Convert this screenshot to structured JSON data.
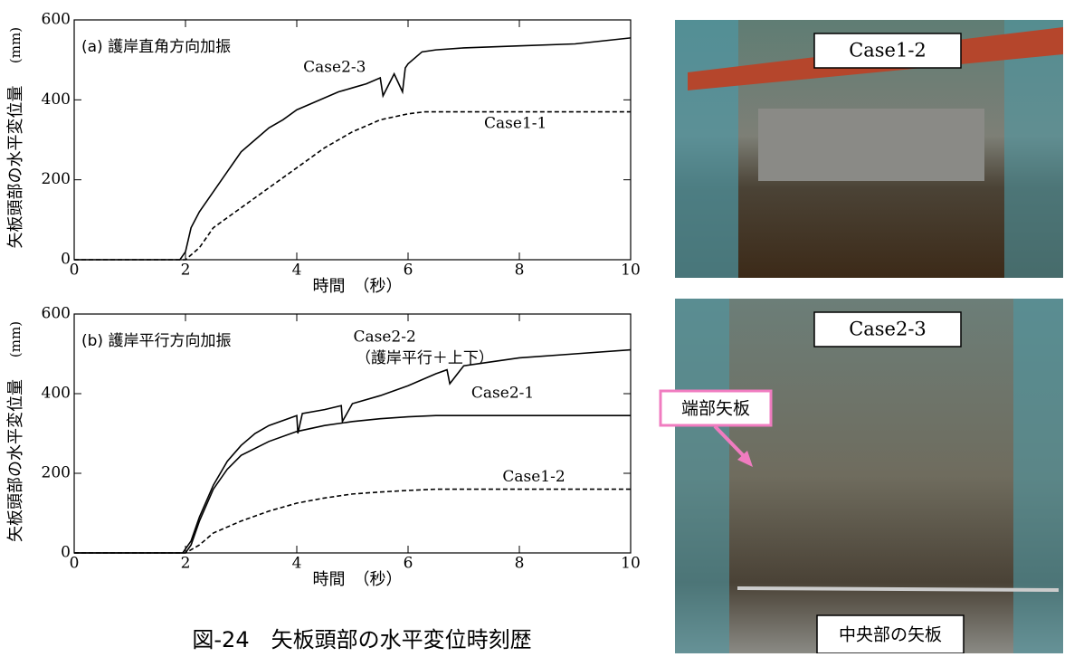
{
  "chart_data": [
    {
      "type": "line",
      "subtitle": "(a) 護岸直角方向加振",
      "xlabel": "時間　（秒）",
      "ylabel": "矢板頭部の水平変位量",
      "yunit": "(mm)",
      "xlim": [
        0,
        10
      ],
      "ylim": [
        0,
        600
      ],
      "xticks": [
        0,
        2,
        4,
        6,
        8,
        10
      ],
      "yticks": [
        0,
        200,
        400,
        600
      ],
      "series": [
        {
          "name": "Case2-3",
          "color": "#000000",
          "dash": false,
          "x": [
            0,
            1.9,
            2.0,
            2.1,
            2.25,
            2.5,
            2.75,
            3.0,
            3.25,
            3.5,
            3.75,
            4.0,
            4.25,
            4.5,
            4.75,
            5.0,
            5.25,
            5.5,
            5.55,
            5.75,
            5.9,
            5.95,
            6.0,
            6.25,
            6.5,
            7.0,
            8.0,
            9.0,
            10.0
          ],
          "values": [
            0,
            0,
            20,
            80,
            120,
            170,
            220,
            270,
            300,
            330,
            350,
            375,
            390,
            405,
            420,
            430,
            440,
            455,
            410,
            465,
            420,
            480,
            490,
            520,
            525,
            530,
            535,
            540,
            555
          ]
        },
        {
          "name": "Case1-1",
          "color": "#000000",
          "dash": true,
          "x": [
            0,
            2.0,
            2.25,
            2.5,
            3.0,
            3.5,
            4.0,
            4.5,
            5.0,
            5.5,
            6.0,
            6.3,
            10.0
          ],
          "values": [
            0,
            0,
            30,
            80,
            130,
            180,
            230,
            280,
            320,
            350,
            365,
            370,
            370
          ]
        }
      ]
    },
    {
      "type": "line",
      "subtitle": "(b) 護岸平行方向加振",
      "xlabel": "時間　（秒）",
      "ylabel": "矢板頭部の水平変位量",
      "yunit": "(mm)",
      "annotation": "（護岸平行＋上下）",
      "xlim": [
        0,
        10
      ],
      "ylim": [
        0,
        600
      ],
      "xticks": [
        0,
        2,
        4,
        6,
        8,
        10
      ],
      "yticks": [
        0,
        200,
        400,
        600
      ],
      "series": [
        {
          "name": "Case2-2",
          "color": "#000000",
          "dash": false,
          "x": [
            0,
            1.95,
            2.1,
            2.25,
            2.5,
            2.75,
            3.0,
            3.25,
            3.5,
            4.0,
            4.02,
            4.1,
            4.5,
            4.8,
            4.82,
            5.0,
            5.5,
            6.0,
            6.5,
            6.7,
            6.75,
            7.0,
            7.5,
            8.0,
            9.0,
            10.0
          ],
          "values": [
            0,
            0,
            30,
            90,
            170,
            230,
            270,
            300,
            320,
            345,
            300,
            350,
            360,
            370,
            330,
            375,
            395,
            420,
            450,
            460,
            425,
            470,
            480,
            490,
            500,
            510
          ]
        },
        {
          "name": "Case2-1",
          "color": "#000000",
          "dash": false,
          "x": [
            0,
            2.0,
            2.1,
            2.25,
            2.5,
            2.75,
            3.0,
            3.5,
            4.0,
            4.5,
            5.0,
            5.5,
            6.0,
            6.5,
            10.0
          ],
          "values": [
            0,
            0,
            20,
            80,
            160,
            210,
            245,
            280,
            305,
            320,
            330,
            337,
            342,
            345,
            345
          ]
        },
        {
          "name": "Case1-2",
          "color": "#000000",
          "dash": true,
          "x": [
            0,
            2.0,
            2.25,
            2.5,
            3.0,
            3.5,
            4.0,
            4.5,
            5.0,
            5.5,
            6.0,
            6.5,
            10.0
          ],
          "values": [
            0,
            0,
            20,
            50,
            80,
            105,
            125,
            138,
            148,
            153,
            157,
            160,
            160
          ]
        }
      ]
    }
  ],
  "figure_caption": "図-24　矢板頭部の水平変位時刻歴",
  "photos": [
    {
      "label": "Case1-2"
    },
    {
      "label": "Case2-3",
      "callout": "端部矢板",
      "bottom_label": "中央部の矢板"
    }
  ]
}
